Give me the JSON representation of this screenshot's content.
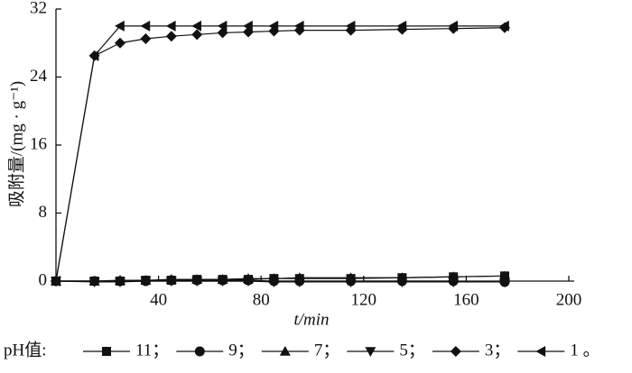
{
  "chart_data": {
    "type": "line",
    "x_label": "t/min",
    "y_label": "吸附量/(mg · g⁻¹)",
    "legend_title": "pH值:",
    "x": [
      0,
      15,
      25,
      35,
      45,
      55,
      65,
      75,
      85,
      95,
      115,
      135,
      155,
      175
    ],
    "xlim": [
      0,
      200
    ],
    "xticks": [
      40,
      80,
      120,
      160,
      200
    ],
    "ylim": [
      0,
      32
    ],
    "yticks": [
      0,
      8,
      16,
      24,
      32
    ],
    "color": "#111111",
    "series": [
      {
        "name": "11；",
        "marker": "square",
        "values": [
          0,
          0,
          0,
          0.1,
          0.1,
          0.2,
          0.2,
          0.2,
          0.3,
          0.3,
          0.3,
          0.4,
          0.5,
          0.6
        ]
      },
      {
        "name": "9；",
        "marker": "circle",
        "values": [
          0,
          0,
          0,
          0,
          0.1,
          0.1,
          0.1,
          0.1,
          0,
          0,
          0,
          0,
          0,
          -0.1
        ]
      },
      {
        "name": "7；",
        "marker": "triangle-up",
        "values": [
          0,
          0,
          0.1,
          0.1,
          0.2,
          0.2,
          0.2,
          0.3,
          0.3,
          0.4,
          0.4,
          0.4,
          0.5,
          0.6
        ]
      },
      {
        "name": "5；",
        "marker": "triangle-down",
        "values": [
          0,
          -0.1,
          -0.1,
          0,
          0,
          0,
          0,
          0,
          -0.1,
          -0.1,
          -0.1,
          -0.1,
          -0.1,
          -0.1
        ]
      },
      {
        "name": "3；",
        "marker": "diamond",
        "values": [
          0,
          26.5,
          28,
          28.5,
          28.8,
          29,
          29.2,
          29.3,
          29.4,
          29.5,
          29.5,
          29.6,
          29.7,
          29.8
        ]
      },
      {
        "name": "1 。",
        "marker": "triangle-left",
        "values": [
          0,
          26.5,
          30,
          30,
          30,
          30,
          30,
          30,
          30,
          30,
          30,
          30,
          30,
          30
        ]
      }
    ]
  }
}
